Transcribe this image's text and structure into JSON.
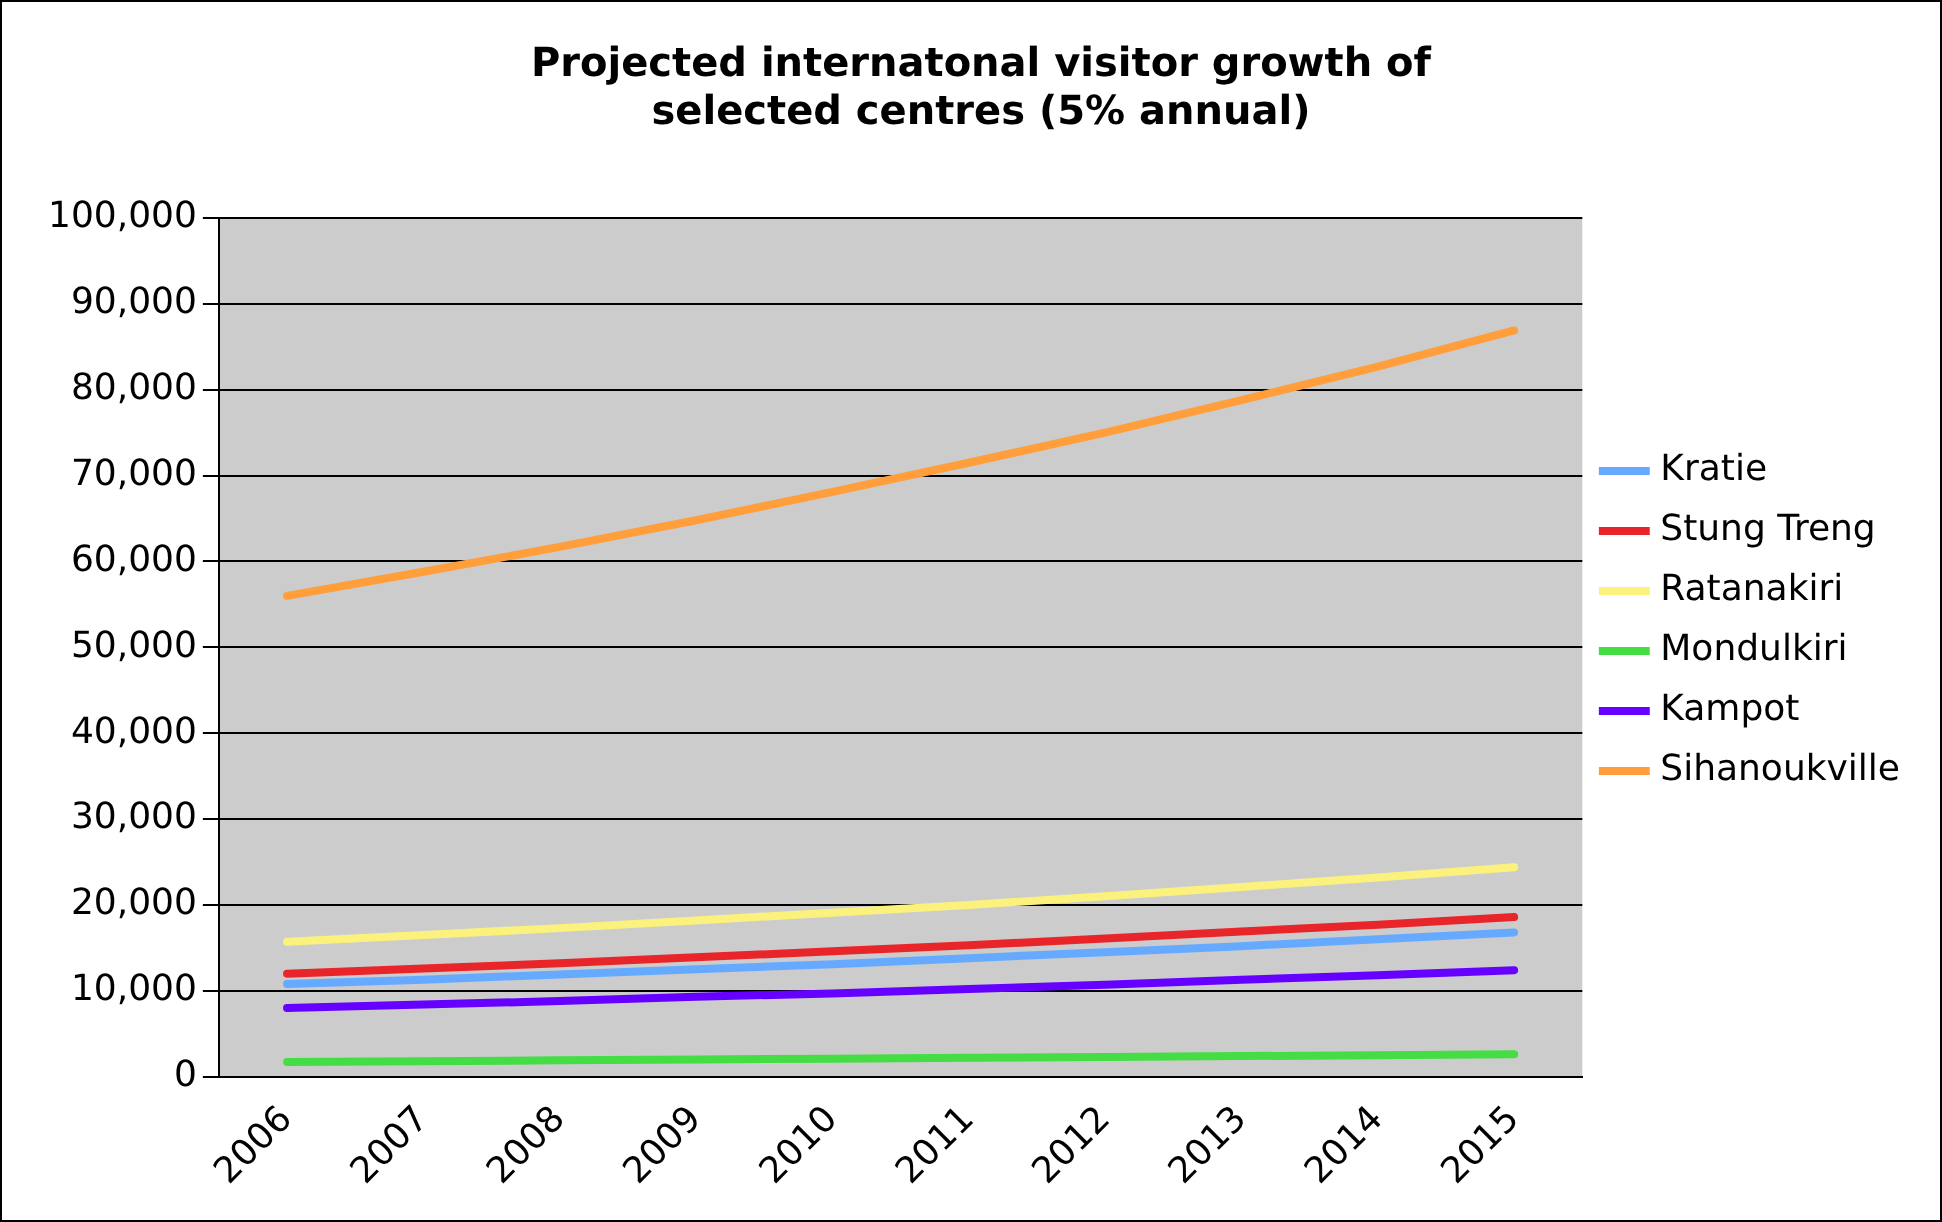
{
  "chart_data": {
    "type": "line",
    "title": "Projected internatonal visitor growth of selected centres (5% annual)",
    "categories": [
      "2006",
      "2007",
      "2008",
      "2009",
      "2010",
      "2011",
      "2012",
      "2013",
      "2014",
      "2015"
    ],
    "series": [
      {
        "name": "Kratie",
        "color": "#66aaff",
        "values": [
          10800,
          11300,
          11900,
          12500,
          13100,
          13800,
          14500,
          15200,
          16000,
          16800
        ]
      },
      {
        "name": "Stung Treng",
        "color": "#e8262a",
        "values": [
          12000,
          12600,
          13200,
          13900,
          14600,
          15300,
          16100,
          16900,
          17700,
          18600
        ]
      },
      {
        "name": "Ratanakiri",
        "color": "#fbf27e",
        "values": [
          15700,
          16500,
          17300,
          18200,
          19100,
          20000,
          21000,
          22100,
          23200,
          24400
        ]
      },
      {
        "name": "Mondulkiri",
        "color": "#44dd44",
        "values": [
          1700,
          1800,
          1900,
          2000,
          2100,
          2200,
          2300,
          2400,
          2500,
          2600
        ]
      },
      {
        "name": "Kampot",
        "color": "#6600ff",
        "values": [
          8000,
          8400,
          8800,
          9300,
          9700,
          10200,
          10700,
          11300,
          11800,
          12400
        ]
      },
      {
        "name": "Sihanoukville",
        "color": "#ff9e3a",
        "values": [
          56000,
          58800,
          61700,
          64800,
          68100,
          71500,
          75000,
          78800,
          82700,
          86900
        ]
      }
    ],
    "ylim": [
      0,
      100000
    ],
    "yticks": [
      {
        "value": 0,
        "label": "0"
      },
      {
        "value": 10000,
        "label": "10,000"
      },
      {
        "value": 20000,
        "label": "20,000"
      },
      {
        "value": 30000,
        "label": "30,000"
      },
      {
        "value": 40000,
        "label": "40,000"
      },
      {
        "value": 50000,
        "label": "50,000"
      },
      {
        "value": 60000,
        "label": "60,000"
      },
      {
        "value": 70000,
        "label": "70,000"
      },
      {
        "value": 80000,
        "label": "80,000"
      },
      {
        "value": 90000,
        "label": "90,000"
      },
      {
        "value": 100000,
        "label": "100,000"
      }
    ],
    "grid": "y",
    "legend": "right",
    "marker": "none",
    "line_style": "solid"
  }
}
